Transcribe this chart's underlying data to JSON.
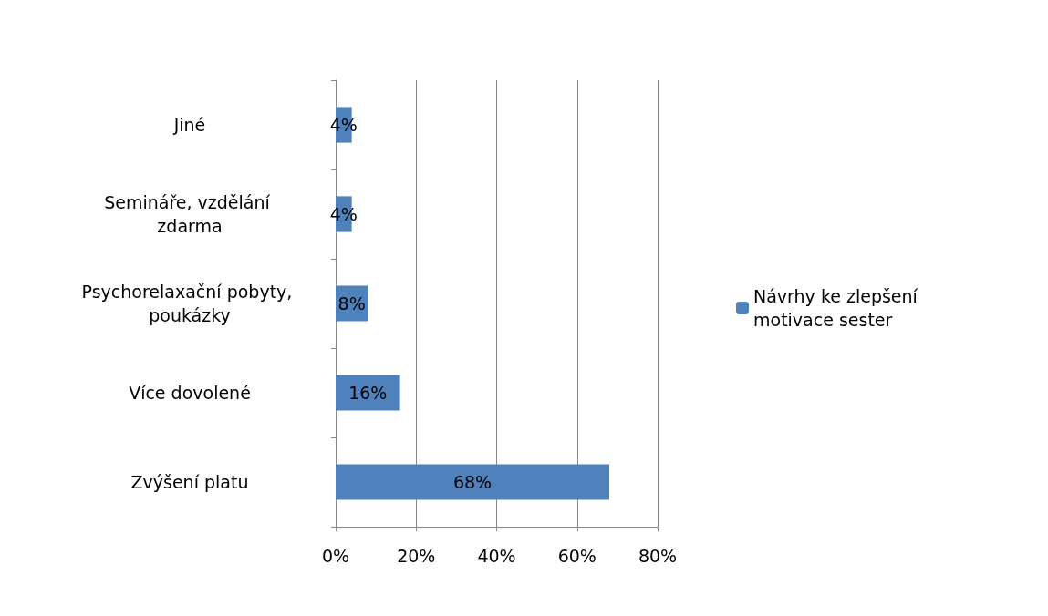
{
  "chart_data": {
    "type": "bar",
    "orientation": "horizontal",
    "categories": [
      "Jiné",
      "Semináře, vzdělání zdarma",
      "Psychorelaxační pobyty, poukázky",
      "Více dovolené",
      "Zvýšení platu"
    ],
    "series": [
      {
        "name": "Návrhy ke zlepšení motivace sester",
        "color": "#4f81bd",
        "values": [
          4,
          4,
          8,
          16,
          68
        ],
        "value_labels": [
          "4%",
          "4%",
          "8%",
          "16%",
          "68%"
        ]
      }
    ],
    "xlim": [
      0,
      80
    ],
    "xticks": [
      {
        "value": 0,
        "label": "0%"
      },
      {
        "value": 20,
        "label": "20%"
      },
      {
        "value": 40,
        "label": "40%"
      },
      {
        "value": 60,
        "label": "60%"
      },
      {
        "value": 80,
        "label": "80%"
      }
    ],
    "grid": "x",
    "legend": "right"
  }
}
